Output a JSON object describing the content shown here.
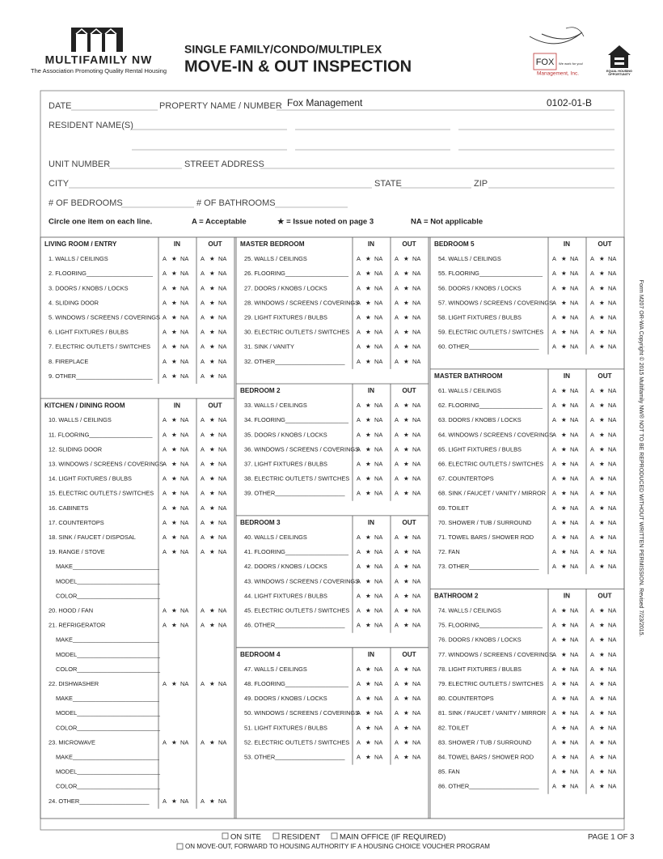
{
  "header": {
    "org_name": "MULTIFAMILY NW",
    "org_tagline": "The Association Promoting Quality Rental Housing",
    "subtitle": "SINGLE FAMILY/CONDO/MULTIPLEX",
    "title": "MOVE-IN & OUT INSPECTION",
    "fox_name": "FOX",
    "fox_tagline": "We work for you!",
    "fox_sub": "Management, Inc.",
    "eho_line1": "EQUAL HOUSING",
    "eho_line2": "OPPORTUNITY"
  },
  "fields": {
    "date": "DATE",
    "property": "PROPERTY NAME / NUMBER",
    "property_value": "Fox Management",
    "property_number": "0102-01-B",
    "residents": "RESIDENT NAME(S)",
    "unit": "UNIT NUMBER",
    "street": "STREET ADDRESS",
    "city": "CITY",
    "state": "STATE",
    "zip": "ZIP",
    "bedrooms": "# OF BEDROOMS",
    "bathrooms": "# OF BATHROOMS"
  },
  "legend": {
    "instruction": "Circle one item on each line.",
    "a": "A = Acceptable",
    "star": "★ = Issue noted on page 3",
    "na": "NA = Not applicable"
  },
  "choices": [
    "A",
    "★",
    "NA"
  ],
  "in_label": "IN",
  "out_label": "OUT",
  "columns": [
    [
      {
        "title": "LIVING ROOM / ENTRY",
        "items": [
          {
            "label": "1. WALLS / CEILINGS"
          },
          {
            "label": "2. FLOORING____________________"
          },
          {
            "label": "3. DOORS / KNOBS / LOCKS"
          },
          {
            "label": "4. SLIDING DOOR"
          },
          {
            "label": "5. WINDOWS / SCREENS / COVERINGS"
          },
          {
            "label": "6. LIGHT FIXTURES / BULBS"
          },
          {
            "label": "7. ELECTRIC OUTLETS / SWITCHES"
          },
          {
            "label": "8. FIREPLACE"
          },
          {
            "label": "9. OTHER_______________________"
          }
        ]
      },
      {
        "title": "KITCHEN / DINING ROOM",
        "items": [
          {
            "label": "10. WALLS / CEILINGS"
          },
          {
            "label": "11. FLOORING___________________"
          },
          {
            "label": "12. SLIDING DOOR"
          },
          {
            "label": "13. WINDOWS / SCREENS / COVERINGS"
          },
          {
            "label": "14. LIGHT FIXTURES / BULBS"
          },
          {
            "label": "15. ELECTRIC OUTLETS / SWITCHES"
          },
          {
            "label": "16. CABINETS"
          },
          {
            "label": "17. COUNTERTOPS"
          },
          {
            "label": "18. SINK / FAUCET / DISPOSAL"
          },
          {
            "label": "19. RANGE / STOVE",
            "details": [
              "MAKE__________________________",
              "MODEL_________________________",
              "COLOR_________________________"
            ]
          },
          {
            "label": "20. HOOD / FAN"
          },
          {
            "label": "21. REFRIGERATOR",
            "details": [
              "MAKE__________________________",
              "MODEL_________________________",
              "COLOR_________________________"
            ]
          },
          {
            "label": "22. DISHWASHER",
            "details": [
              "MAKE__________________________",
              "MODEL_________________________",
              "COLOR_________________________"
            ]
          },
          {
            "label": "23. MICROWAVE",
            "details": [
              "MAKE__________________________",
              "MODEL_________________________",
              "COLOR_________________________"
            ]
          },
          {
            "label": "24. OTHER_____________________"
          }
        ]
      }
    ],
    [
      {
        "title": "MASTER BEDROOM",
        "items": [
          {
            "label": "25. WALLS / CEILINGS"
          },
          {
            "label": "26. FLOORING___________________"
          },
          {
            "label": "27. DOORS / KNOBS / LOCKS"
          },
          {
            "label": "28. WINDOWS / SCREENS / COVERINGS"
          },
          {
            "label": "29. LIGHT FIXTURES / BULBS"
          },
          {
            "label": "30. ELECTRIC OUTLETS / SWITCHES"
          },
          {
            "label": "31. SINK / VANITY"
          },
          {
            "label": "32. OTHER_____________________"
          }
        ]
      },
      {
        "title": "BEDROOM 2",
        "items": [
          {
            "label": "33. WALLS / CEILINGS"
          },
          {
            "label": "34. FLOORING___________________"
          },
          {
            "label": "35. DOORS / KNOBS / LOCKS"
          },
          {
            "label": "36. WINDOWS / SCREENS / COVERINGS"
          },
          {
            "label": "37. LIGHT FIXTURES / BULBS"
          },
          {
            "label": "38. ELECTRIC OUTLETS / SWITCHES"
          },
          {
            "label": "39. OTHER_____________________"
          }
        ]
      },
      {
        "title": "BEDROOM 3",
        "items": [
          {
            "label": "40. WALLS / CEILINGS"
          },
          {
            "label": "41. FLOORING___________________"
          },
          {
            "label": "42. DOORS / KNOBS / LOCKS"
          },
          {
            "label": "43. WINDOWS / SCREENS / COVERINGS"
          },
          {
            "label": "44. LIGHT FIXTURES / BULBS"
          },
          {
            "label": "45. ELECTRIC OUTLETS / SWITCHES"
          },
          {
            "label": "46. OTHER_____________________"
          }
        ]
      },
      {
        "title": "BEDROOM 4",
        "items": [
          {
            "label": "47. WALLS / CEILINGS"
          },
          {
            "label": "48. FLOORING___________________"
          },
          {
            "label": "49. DOORS / KNOBS / LOCKS"
          },
          {
            "label": "50. WINDOWS / SCREENS / COVERINGS"
          },
          {
            "label": "51. LIGHT FIXTURES / BULBS"
          },
          {
            "label": "52. ELECTRIC OUTLETS / SWITCHES"
          },
          {
            "label": "53. OTHER_____________________"
          }
        ]
      }
    ],
    [
      {
        "title": "BEDROOM 5",
        "items": [
          {
            "label": "54. WALLS / CEILINGS"
          },
          {
            "label": "55. FLOORING___________________"
          },
          {
            "label": "56. DOORS / KNOBS / LOCKS"
          },
          {
            "label": "57. WINDOWS / SCREENS / COVERINGS"
          },
          {
            "label": "58. LIGHT FIXTURES / BULBS"
          },
          {
            "label": "59. ELECTRIC OUTLETS / SWITCHES"
          },
          {
            "label": "60. OTHER_____________________"
          }
        ]
      },
      {
        "title": "MASTER BATHROOM",
        "items": [
          {
            "label": "61. WALLS / CEILINGS"
          },
          {
            "label": "62. FLOORING___________________"
          },
          {
            "label": "63. DOORS / KNOBS / LOCKS"
          },
          {
            "label": "64. WINDOWS / SCREENS / COVERINGS"
          },
          {
            "label": "65. LIGHT FIXTURES / BULBS"
          },
          {
            "label": "66. ELECTRIC OUTLETS / SWITCHES"
          },
          {
            "label": "67. COUNTERTOPS"
          },
          {
            "label": "68. SINK / FAUCET / VANITY / MIRROR"
          },
          {
            "label": "69. TOILET"
          },
          {
            "label": "70. SHOWER / TUB / SURROUND"
          },
          {
            "label": "71. TOWEL BARS / SHOWER ROD"
          },
          {
            "label": "72. FAN"
          },
          {
            "label": "73. OTHER_____________________"
          }
        ]
      },
      {
        "title": "BATHROOM 2",
        "items": [
          {
            "label": "74. WALLS / CEILINGS"
          },
          {
            "label": "75. FLOORING___________________"
          },
          {
            "label": "76. DOORS / KNOBS / LOCKS"
          },
          {
            "label": "77. WINDOWS / SCREENS / COVERINGS"
          },
          {
            "label": "78. LIGHT FIXTURES / BULBS"
          },
          {
            "label": "79. ELECTRIC OUTLETS / SWITCHES"
          },
          {
            "label": "80. COUNTERTOPS"
          },
          {
            "label": "81. SINK / FAUCET / VANITY / MIRROR"
          },
          {
            "label": "82. TOILET"
          },
          {
            "label": "83. SHOWER / TUB / SURROUND"
          },
          {
            "label": "84. TOWEL BARS / SHOWER ROD"
          },
          {
            "label": "85. FAN"
          },
          {
            "label": "86. OTHER_____________________"
          }
        ]
      }
    ]
  ],
  "footer": {
    "on_site": "ON SITE",
    "resident": "RESIDENT",
    "main_office": "MAIN OFFICE (IF REQUIRED)",
    "page": "PAGE 1 OF 3",
    "voucher": "ON MOVE-OUT, FORWARD TO HOUSING AUTHORITY IF A HOUSING CHOICE VOUCHER PROGRAM"
  },
  "side_note": "Form M207 OR-WA Copyright © 2015 Multifamily NW® NOT TO BE REPRODUCED WITHOUT WRITTEN PERMISSION. Revised 7/23/2015."
}
